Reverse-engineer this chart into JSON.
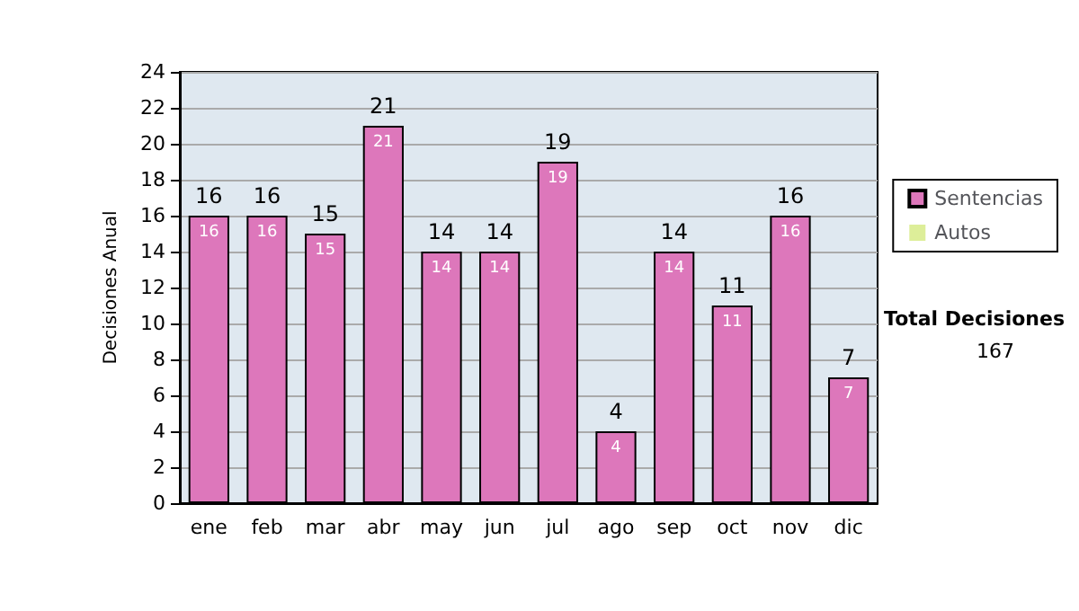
{
  "chart_data": {
    "type": "bar",
    "stacked": true,
    "ylabel": "Decisiones Anual",
    "categories": [
      "ene",
      "feb",
      "mar",
      "abr",
      "may",
      "jun",
      "jul",
      "ago",
      "sep",
      "oct",
      "nov",
      "dic"
    ],
    "series": [
      {
        "name": "Sentencias",
        "color": "#dd77bb",
        "values": [
          16,
          16,
          15,
          21,
          14,
          14,
          19,
          4,
          14,
          11,
          16,
          7
        ],
        "value_labels": [
          "16",
          "16",
          "15",
          "21",
          "14",
          "14",
          "19",
          "4",
          "14",
          "11",
          "16",
          "7"
        ]
      },
      {
        "name": "Autos",
        "color": "#ddee99",
        "values": [
          0,
          0,
          0,
          0,
          0,
          0,
          0,
          0,
          0,
          0,
          0,
          0
        ]
      }
    ],
    "totals": [
      "16",
      "16",
      "15",
      "21",
      "14",
      "14",
      "19",
      "4",
      "14",
      "11",
      "16",
      "7"
    ],
    "ylim": [
      0,
      24
    ],
    "yticks": [
      0,
      2,
      4,
      6,
      8,
      10,
      12,
      14,
      16,
      18,
      20,
      22,
      24
    ],
    "grid": "y",
    "legend": "right",
    "annotations": [
      "Total Decisiones",
      "167"
    ]
  }
}
